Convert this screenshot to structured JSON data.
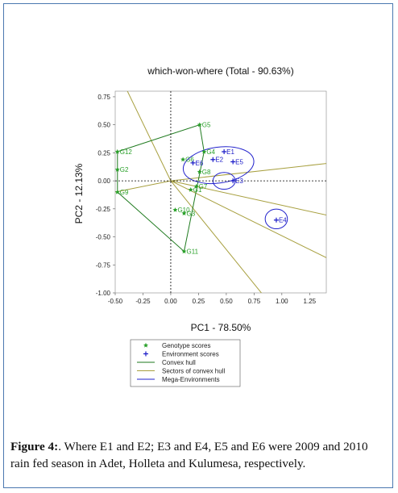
{
  "caption": {
    "label": "Figure 4:",
    "text": ". Where E1 and E2; E3 and E4, E5 and E6 were 2009 and 2010 rain fed season in Adet, Holleta and Kulumesa, respectively."
  },
  "colors": {
    "genotype": "#2aa02a",
    "environment": "#1a1ac8",
    "hull": "#1e7a1e",
    "sector": "#a8a040",
    "mega": "#2222cc",
    "axis_ref": "#000000"
  },
  "chart_data": {
    "type": "scatter",
    "title": "which-won-where  (Total - 90.63%)",
    "xlabel": "PC1 - 78.50%",
    "ylabel": "PC2 - 12.13%",
    "xlim": [
      -0.5,
      1.4
    ],
    "ylim": [
      -1.0,
      0.8
    ],
    "xticks": [
      -0.5,
      -0.25,
      0.0,
      0.25,
      0.5,
      0.75,
      1.0,
      1.25
    ],
    "xtick_labels": [
      "-0.50",
      "-0.25",
      "0.00",
      "0.25",
      "0.50",
      "0.75",
      "1.00",
      "1.25"
    ],
    "yticks": [
      0.75,
      0.5,
      0.25,
      0.0,
      -0.25,
      -0.5,
      -0.75,
      -1.0
    ],
    "ytick_labels": [
      "0.75",
      "0.50",
      "0.25",
      "0.00",
      "-0.25",
      "-0.50",
      "-0.75",
      "-1.00"
    ],
    "genotypes": [
      {
        "name": "G1",
        "x": 0.18,
        "y": -0.08
      },
      {
        "name": "G2",
        "x": -0.48,
        "y": 0.1
      },
      {
        "name": "G3",
        "x": 0.12,
        "y": -0.29
      },
      {
        "name": "G4",
        "x": 0.3,
        "y": 0.26
      },
      {
        "name": "G5",
        "x": 0.26,
        "y": 0.5
      },
      {
        "name": "G6",
        "x": 0.11,
        "y": 0.19
      },
      {
        "name": "G7",
        "x": 0.23,
        "y": -0.05
      },
      {
        "name": "G8",
        "x": 0.26,
        "y": 0.08
      },
      {
        "name": "G9",
        "x": -0.48,
        "y": -0.1
      },
      {
        "name": "G10",
        "x": 0.04,
        "y": -0.26
      },
      {
        "name": "G11",
        "x": 0.12,
        "y": -0.63
      },
      {
        "name": "G12",
        "x": -0.48,
        "y": 0.26
      }
    ],
    "environments": [
      {
        "name": "E1",
        "x": 0.48,
        "y": 0.26
      },
      {
        "name": "E2",
        "x": 0.38,
        "y": 0.19
      },
      {
        "name": "E3",
        "x": 0.56,
        "y": 0.0
      },
      {
        "name": "E4",
        "x": 0.95,
        "y": -0.35
      },
      {
        "name": "E5",
        "x": 0.56,
        "y": 0.17
      },
      {
        "name": "E6",
        "x": 0.2,
        "y": 0.16
      }
    ],
    "convex_hull": [
      "G5",
      "G4",
      "G11",
      "G9",
      "G2",
      "G12"
    ],
    "sector_rays": [
      {
        "angle_deg": -168.7,
        "length": 3.0
      },
      {
        "angle_deg": 116.0,
        "length": 3.0
      },
      {
        "angle_deg": -50.8,
        "length": 3.0
      },
      {
        "angle_deg": 6.3,
        "length": 3.0
      },
      {
        "angle_deg": -12.3,
        "length": 3.0
      },
      {
        "angle_deg": -26.1,
        "length": 3.0
      }
    ],
    "mega_environments": [
      {
        "cx": 0.43,
        "cy": 0.14,
        "rx": 0.32,
        "ry": 0.16,
        "rotate_deg": -8
      },
      {
        "cx": 0.48,
        "cy": 0.0,
        "rx": 0.1,
        "ry": 0.075,
        "rotate_deg": 0
      },
      {
        "cx": 0.95,
        "cy": -0.34,
        "rx": 0.1,
        "ry": 0.088,
        "rotate_deg": 0
      }
    ],
    "legend": {
      "placement": "bottom-left",
      "entries": [
        {
          "symbol": "star",
          "label": "Genotype scores"
        },
        {
          "symbol": "plus",
          "label": "Environment scores"
        },
        {
          "symbol": "line-hull",
          "label": "Convex hull"
        },
        {
          "symbol": "line-sector",
          "label": "Sectors of convex hull"
        },
        {
          "symbol": "line-mega",
          "label": "Mega-Environments"
        }
      ]
    }
  }
}
